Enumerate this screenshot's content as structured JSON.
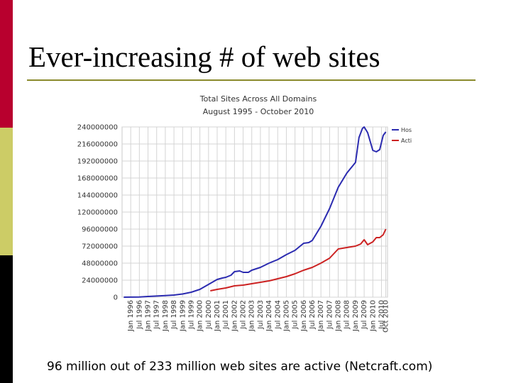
{
  "slide": {
    "title": "Ever-increasing # of web sites",
    "caption": "96 million out of 233 million web sites are active (Netcraft.com)"
  },
  "chart_data": {
    "type": "line",
    "title": "Total Sites Across All Domains",
    "subtitle": "August 1995 - October 2010",
    "xlabel": "",
    "ylabel": "",
    "ylim": [
      0,
      240000000
    ],
    "yticks": [
      "0",
      "24000000",
      "48000000",
      "72000000",
      "96000000",
      "120000000",
      "144000000",
      "168000000",
      "192000000",
      "216000000",
      "240000000"
    ],
    "xticks": [
      "Jan 1996",
      "Jul 1996",
      "Jan 1997",
      "Jul 1997",
      "Jan 1998",
      "Jul 1998",
      "Jan 1999",
      "Jul 1999",
      "Jan 2000",
      "Jul 2000",
      "Jan 2001",
      "Jul 2001",
      "Jan 2002",
      "Jul 2002",
      "Jan 2003",
      "Jul 2003",
      "Jan 2004",
      "Jul 2004",
      "Jan 2005",
      "Jul 2005",
      "Jan 2006",
      "Jul 2006",
      "Jan 2007",
      "Jul 2007",
      "Jan 2008",
      "Jul 2008",
      "Jan 2009",
      "Jul 2009",
      "Jan 2010",
      "Jul 2010",
      "Oct 2010"
    ],
    "grid": true,
    "legend_position": "top-right",
    "series": [
      {
        "name": "Hostnames",
        "color": "#2b2bb0",
        "x": [
          1995.6,
          1996.0,
          1996.5,
          1997.0,
          1997.5,
          1998.0,
          1998.5,
          1999.0,
          1999.5,
          2000.0,
          2000.5,
          2001.0,
          2001.3,
          2001.5,
          2001.8,
          2002.0,
          2002.3,
          2002.5,
          2002.8,
          2003.0,
          2003.5,
          2004.0,
          2004.5,
          2005.0,
          2005.5,
          2006.0,
          2006.3,
          2006.5,
          2007.0,
          2007.5,
          2008.0,
          2008.5,
          2009.0,
          2009.2,
          2009.4,
          2009.5,
          2009.7,
          2010.0,
          2010.2,
          2010.4,
          2010.6,
          2010.75
        ],
        "y": [
          20000,
          100000,
          300000,
          1000000,
          1600000,
          2300000,
          3000000,
          4500000,
          7000000,
          11000000,
          18000000,
          25000000,
          27000000,
          28000000,
          31000000,
          36000000,
          37000000,
          35000000,
          35000000,
          38000000,
          42000000,
          48000000,
          53000000,
          60000000,
          66000000,
          76000000,
          77000000,
          80000000,
          100000000,
          125000000,
          155000000,
          175000000,
          190000000,
          225000000,
          238000000,
          240000000,
          232000000,
          207000000,
          205000000,
          208000000,
          228000000,
          233000000
        ]
      },
      {
        "name": "Active",
        "color": "#cc2222",
        "x": [
          2000.6,
          2001.0,
          2001.5,
          2002.0,
          2002.5,
          2003.0,
          2003.5,
          2004.0,
          2004.5,
          2005.0,
          2005.5,
          2006.0,
          2006.5,
          2007.0,
          2007.5,
          2008.0,
          2008.5,
          2009.0,
          2009.3,
          2009.5,
          2009.7,
          2010.0,
          2010.2,
          2010.4,
          2010.6,
          2010.75
        ],
        "y": [
          9000000,
          11000000,
          13000000,
          16000000,
          17000000,
          19000000,
          21000000,
          23000000,
          26000000,
          29000000,
          33000000,
          38000000,
          42000000,
          48000000,
          55000000,
          68000000,
          70000000,
          72000000,
          75000000,
          81000000,
          74000000,
          78000000,
          84000000,
          84000000,
          88000000,
          96000000
        ]
      }
    ]
  }
}
